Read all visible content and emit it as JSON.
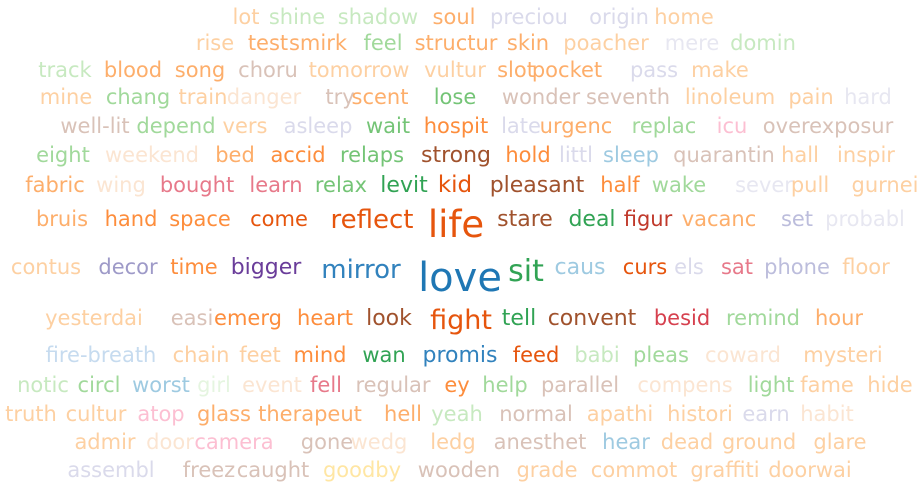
{
  "rows": [
    {
      "words": [
        {
          "t": "lot",
          "c": "#fdd0a2"
        },
        {
          "t": "shine",
          "c": "#c7e9c0"
        },
        {
          "t": "shadow",
          "c": "#c7e9c0"
        },
        {
          "t": "soul",
          "c": "#fdae6b"
        },
        {
          "t": "preciou",
          "c": "#dadaeb"
        },
        {
          "t": "origin",
          "c": "#dadaeb"
        },
        {
          "t": "home",
          "c": "#fdd0a2"
        }
      ]
    },
    {
      "words": [
        {
          "t": "rise",
          "c": "#fdd0a2"
        },
        {
          "t": "test",
          "c": "#fdae6b"
        },
        {
          "t": "smirk",
          "c": "#fdae6b"
        },
        {
          "t": "feel",
          "c": "#a1d99b"
        },
        {
          "t": "structur",
          "c": "#fdae6b"
        },
        {
          "t": "skin",
          "c": "#fdae6b"
        },
        {
          "t": "poacher",
          "c": "#fdd0a2"
        },
        {
          "t": "mere",
          "c": "#e7e7f1"
        },
        {
          "t": "domin",
          "c": "#c7e9c0"
        }
      ]
    },
    {
      "words": [
        {
          "t": "track",
          "c": "#c7e9c0"
        },
        {
          "t": "blood",
          "c": "#fdae6b"
        },
        {
          "t": "song",
          "c": "#fdae6b"
        },
        {
          "t": "choru",
          "c": "#d9c2b8"
        },
        {
          "t": "tomorrow",
          "c": "#fdd0a2"
        },
        {
          "t": "vultur",
          "c": "#fdd0a2"
        },
        {
          "t": "slot",
          "c": "#fdae6b"
        },
        {
          "t": "pocket",
          "c": "#fdae6b"
        },
        {
          "t": "pass",
          "c": "#dadaeb"
        },
        {
          "t": "make",
          "c": "#fdd0a2"
        }
      ]
    },
    {
      "words": [
        {
          "t": "mine",
          "c": "#fdd0a2"
        },
        {
          "t": "chang",
          "c": "#a1d99b"
        },
        {
          "t": "train",
          "c": "#fdd0a2"
        },
        {
          "t": "danger",
          "c": "#fbe5d2"
        },
        {
          "t": "try",
          "c": "#d9c2b8"
        },
        {
          "t": "scent",
          "c": "#fdae6b"
        },
        {
          "t": "lose",
          "c": "#74c476"
        },
        {
          "t": "wonder",
          "c": "#d9c2b8"
        },
        {
          "t": "seventh",
          "c": "#d9c2b8"
        },
        {
          "t": "linoleum",
          "c": "#fdd0a2"
        },
        {
          "t": "pain",
          "c": "#fdd0a2"
        },
        {
          "t": "hard",
          "c": "#e7e7f1"
        }
      ]
    },
    {
      "words": [
        {
          "t": "well-lit",
          "c": "#d9c2b8"
        },
        {
          "t": "depend",
          "c": "#a1d99b"
        },
        {
          "t": "vers",
          "c": "#fdd0a2"
        },
        {
          "t": "asleep",
          "c": "#dadaeb"
        },
        {
          "t": "wait",
          "c": "#74c476"
        },
        {
          "t": "hospit",
          "c": "#fd8d3c"
        },
        {
          "t": "late",
          "c": "#dadaeb"
        },
        {
          "t": "urgenc",
          "c": "#fdae6b"
        },
        {
          "t": "replac",
          "c": "#a1d99b"
        },
        {
          "t": "icu",
          "c": "#fcbfd2"
        },
        {
          "t": "overexposur",
          "c": "#d9c2b8"
        }
      ]
    },
    {
      "words": [
        {
          "t": "eight",
          "c": "#a1d99b"
        },
        {
          "t": "weekend",
          "c": "#fbe5d2"
        },
        {
          "t": "bed",
          "c": "#fdae6b"
        },
        {
          "t": "accid",
          "c": "#fd8d3c"
        },
        {
          "t": "relaps",
          "c": "#74c476"
        },
        {
          "t": "strong",
          "c": "#a0522d"
        },
        {
          "t": "hold",
          "c": "#fd8d3c"
        },
        {
          "t": "littl",
          "c": "#dadaeb"
        },
        {
          "t": "sleep",
          "c": "#9ecae1"
        },
        {
          "t": "quarantin",
          "c": "#d9c2b8"
        },
        {
          "t": "hall",
          "c": "#fdd0a2"
        },
        {
          "t": "inspir",
          "c": "#fdd0a2"
        }
      ]
    },
    {
      "words": [
        {
          "t": "fabric",
          "c": "#fdae6b"
        },
        {
          "t": "wing",
          "c": "#fbe5d2"
        },
        {
          "t": "bought",
          "c": "#e7798a"
        },
        {
          "t": "learn",
          "c": "#e7798a"
        },
        {
          "t": "relax",
          "c": "#74c476"
        },
        {
          "t": "levit",
          "c": "#31a354"
        },
        {
          "t": "kid",
          "c": "#e6550d"
        },
        {
          "t": "pleasant",
          "c": "#a0522d"
        },
        {
          "t": "half",
          "c": "#fd8d3c"
        },
        {
          "t": "wake",
          "c": "#a1d99b"
        },
        {
          "t": "sever",
          "c": "#e7e7f1"
        },
        {
          "t": "pull",
          "c": "#fdd0a2"
        },
        {
          "t": "gurnei",
          "c": "#fdd0a2"
        }
      ]
    },
    {
      "words": [
        {
          "t": "bruis",
          "c": "#fdae6b"
        },
        {
          "t": "hand",
          "c": "#fd8d3c"
        },
        {
          "t": "space",
          "c": "#fd8d3c"
        },
        {
          "t": "come",
          "c": "#e6550d"
        },
        {
          "t": "reflect",
          "c": "#e6550d"
        },
        {
          "t": "life",
          "c": "#e6550d"
        },
        {
          "t": "stare",
          "c": "#a0522d"
        },
        {
          "t": "deal",
          "c": "#31a354"
        },
        {
          "t": "figur",
          "c": "#c0392b"
        },
        {
          "t": "vacanc",
          "c": "#fdae6b"
        },
        {
          "t": "set",
          "c": "#bcbddc"
        },
        {
          "t": "probabl",
          "c": "#e7e7f1"
        }
      ]
    },
    {
      "words": [
        {
          "t": "contus",
          "c": "#fdd0a2"
        },
        {
          "t": "decor",
          "c": "#9e9ac8"
        },
        {
          "t": "time",
          "c": "#fd8d3c"
        },
        {
          "t": "bigger",
          "c": "#6a3d9a"
        },
        {
          "t": "mirror",
          "c": "#3182bd"
        },
        {
          "t": "love",
          "c": "#1f77b4"
        },
        {
          "t": "sit",
          "c": "#31a354"
        },
        {
          "t": "caus",
          "c": "#9ecae1"
        },
        {
          "t": "curs",
          "c": "#e6550d"
        },
        {
          "t": "els",
          "c": "#dadaeb"
        },
        {
          "t": "sat",
          "c": "#e7798a"
        },
        {
          "t": "phone",
          "c": "#bcbddc"
        },
        {
          "t": "floor",
          "c": "#fdd0a2"
        }
      ]
    },
    {
      "words": [
        {
          "t": "yesterdai",
          "c": "#fdd0a2"
        },
        {
          "t": "easi",
          "c": "#d9c2b8"
        },
        {
          "t": "emerg",
          "c": "#fd8d3c"
        },
        {
          "t": "heart",
          "c": "#fd8d3c"
        },
        {
          "t": "look",
          "c": "#a0522d"
        },
        {
          "t": "fight",
          "c": "#e6550d"
        },
        {
          "t": "tell",
          "c": "#31a354"
        },
        {
          "t": "convent",
          "c": "#a0522d"
        },
        {
          "t": "besid",
          "c": "#d6404e"
        },
        {
          "t": "remind",
          "c": "#a1d99b"
        },
        {
          "t": "hour",
          "c": "#fdae6b"
        }
      ]
    },
    {
      "words": [
        {
          "t": "fire-breath",
          "c": "#c6dbef"
        },
        {
          "t": "chain",
          "c": "#fdd0a2"
        },
        {
          "t": "feet",
          "c": "#fdd0a2"
        },
        {
          "t": "mind",
          "c": "#fd8d3c"
        },
        {
          "t": "wan",
          "c": "#31a354"
        },
        {
          "t": "promis",
          "c": "#3182bd"
        },
        {
          "t": "feed",
          "c": "#e6550d"
        },
        {
          "t": "babi",
          "c": "#c7e9c0"
        },
        {
          "t": "pleas",
          "c": "#a1d99b"
        },
        {
          "t": "coward",
          "c": "#fbe5d2"
        },
        {
          "t": "mysteri",
          "c": "#fdd0a2"
        }
      ]
    },
    {
      "words": [
        {
          "t": "notic",
          "c": "#c7e9c0"
        },
        {
          "t": "circl",
          "c": "#a1d99b"
        },
        {
          "t": "worst",
          "c": "#9ecae1"
        },
        {
          "t": "girl",
          "c": "#e5f5e0"
        },
        {
          "t": "event",
          "c": "#fbe5d2"
        },
        {
          "t": "fell",
          "c": "#e7798a"
        },
        {
          "t": "regular",
          "c": "#d9c2b8"
        },
        {
          "t": "ey",
          "c": "#fd8d3c"
        },
        {
          "t": "help",
          "c": "#a1d99b"
        },
        {
          "t": "parallel",
          "c": "#d9c2b8"
        },
        {
          "t": "compens",
          "c": "#fbe5d2"
        },
        {
          "t": "light",
          "c": "#a1d99b"
        },
        {
          "t": "fame",
          "c": "#fdd0a2"
        },
        {
          "t": "hide",
          "c": "#fdd0a2"
        }
      ]
    },
    {
      "words": [
        {
          "t": "truth",
          "c": "#fdd0a2"
        },
        {
          "t": "cultur",
          "c": "#fdd0a2"
        },
        {
          "t": "atop",
          "c": "#fcbfd2"
        },
        {
          "t": "glass",
          "c": "#fdae6b"
        },
        {
          "t": "therapeut",
          "c": "#fdae6b"
        },
        {
          "t": "hell",
          "c": "#fdae6b"
        },
        {
          "t": "yeah",
          "c": "#c7e9c0"
        },
        {
          "t": "normal",
          "c": "#d9c2b8"
        },
        {
          "t": "apathi",
          "c": "#fdd0a2"
        },
        {
          "t": "histori",
          "c": "#fdd0a2"
        },
        {
          "t": "earn",
          "c": "#dadaeb"
        },
        {
          "t": "habit",
          "c": "#fbe5d2"
        }
      ]
    },
    {
      "words": [
        {
          "t": "admir",
          "c": "#fdd0a2"
        },
        {
          "t": "door",
          "c": "#fbe5d2"
        },
        {
          "t": "camera",
          "c": "#fcbfd2"
        },
        {
          "t": "gone",
          "c": "#d9c2b8"
        },
        {
          "t": "wedg",
          "c": "#fbe5d2"
        },
        {
          "t": "ledg",
          "c": "#fdd0a2"
        },
        {
          "t": "anesthet",
          "c": "#d9c2b8"
        },
        {
          "t": "hear",
          "c": "#9ecae1"
        },
        {
          "t": "dead",
          "c": "#fdd0a2"
        },
        {
          "t": "ground",
          "c": "#fdd0a2"
        },
        {
          "t": "glare",
          "c": "#fdd0a2"
        }
      ]
    },
    {
      "words": [
        {
          "t": "assembl",
          "c": "#dadaeb"
        },
        {
          "t": "freez",
          "c": "#d9c2b8"
        },
        {
          "t": "caught",
          "c": "#d9c2b8"
        },
        {
          "t": "goodby",
          "c": "#ffe6a3"
        },
        {
          "t": "wooden",
          "c": "#d9c2b8"
        },
        {
          "t": "grade",
          "c": "#fdd0a2"
        },
        {
          "t": "commot",
          "c": "#fdd0a2"
        },
        {
          "t": "graffiti",
          "c": "#fdd0a2"
        },
        {
          "t": "doorwai",
          "c": "#fdd0a2"
        }
      ]
    }
  ]
}
